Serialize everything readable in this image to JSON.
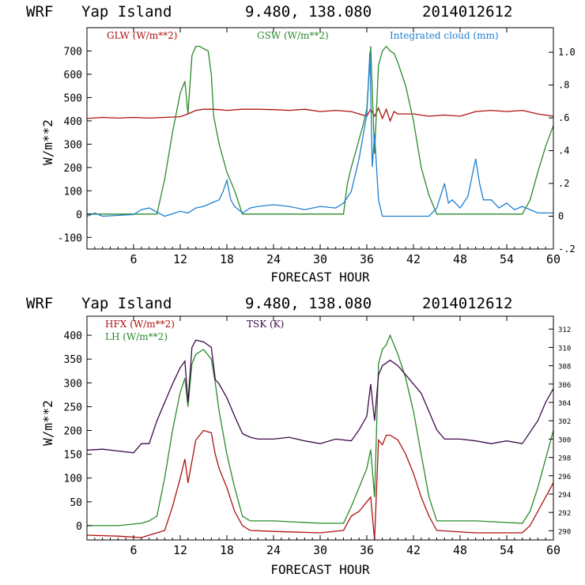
{
  "colors": {
    "glw": "#b01010",
    "gsw": "#2a8a2a",
    "cloud": "#1e7fd0",
    "hfx": "#b01010",
    "lh": "#2a8a2a",
    "tsk": "#3c0a4a",
    "axis": "#000000"
  },
  "chart_data": [
    {
      "type": "line",
      "header": {
        "model": "WRF",
        "location": "Yap Island",
        "coords": "9.480, 138.080",
        "run": "2014012612"
      },
      "xlabel": "FORECAST HOUR",
      "ylabel": "W/m**2",
      "xlim": [
        0,
        60
      ],
      "ylim": [
        -150,
        800
      ],
      "ylim_right": [
        -0.2,
        1.15
      ],
      "x_ticks": [
        6,
        12,
        18,
        24,
        30,
        36,
        42,
        48,
        54,
        60
      ],
      "x_tick_labels": [
        "6",
        "12",
        "18",
        "24",
        "30",
        "36",
        "42",
        "48",
        "54",
        "60"
      ],
      "y_ticks": [
        -100,
        0,
        100,
        200,
        300,
        400,
        500,
        600,
        700
      ],
      "y_tick_labels": [
        "-100",
        "0",
        "100",
        "200",
        "300",
        "400",
        "500",
        "600",
        "700"
      ],
      "y_ticks_right": [
        -0.2,
        0,
        0.2,
        0.4,
        0.6,
        0.8,
        1.0
      ],
      "y_tick_labels_right": [
        "-.2",
        "0",
        ".2",
        ".4",
        ".6",
        ".8",
        "1.0"
      ],
      "series": [
        {
          "name": "GLW (W/m**2)",
          "axis": "left",
          "color_key": "glw",
          "x": [
            0,
            2,
            4,
            6,
            8,
            10,
            12,
            13,
            14,
            15,
            16,
            17,
            18,
            20,
            22,
            24,
            26,
            28,
            30,
            32,
            34,
            35,
            36,
            36.5,
            37,
            37.5,
            38,
            38.5,
            39,
            39.5,
            40,
            42,
            44,
            46,
            48,
            50,
            52,
            54,
            56,
            58,
            60
          ],
          "y": [
            410,
            415,
            412,
            415,
            412,
            415,
            418,
            430,
            445,
            450,
            450,
            448,
            445,
            450,
            450,
            448,
            445,
            450,
            440,
            445,
            440,
            430,
            420,
            450,
            420,
            455,
            410,
            450,
            400,
            440,
            430,
            430,
            420,
            425,
            420,
            440,
            445,
            440,
            445,
            430,
            420
          ]
        },
        {
          "name": "GSW (W/m**2)",
          "axis": "left",
          "color_key": "gsw",
          "x": [
            0,
            6,
            9,
            10,
            11,
            12,
            12.6,
            13,
            13.5,
            14,
            14.5,
            15,
            15.6,
            16,
            16.3,
            17,
            18,
            19,
            20,
            24,
            30,
            33,
            33.5,
            34,
            34.5,
            35,
            35.5,
            36,
            36.5,
            37,
            37.5,
            38,
            38.5,
            39,
            39.5,
            40,
            41,
            42,
            43,
            44,
            45,
            50,
            56,
            57,
            58,
            59,
            60
          ],
          "y": [
            0,
            0,
            0,
            150,
            350,
            520,
            570,
            430,
            680,
            720,
            720,
            710,
            700,
            600,
            420,
            300,
            180,
            100,
            0,
            0,
            0,
            0,
            130,
            200,
            260,
            320,
            380,
            450,
            720,
            260,
            640,
            700,
            720,
            700,
            690,
            650,
            550,
            400,
            200,
            80,
            0,
            0,
            0,
            60,
            180,
            290,
            380
          ]
        },
        {
          "name": "Integrated cloud (mm)",
          "axis": "right",
          "color_key": "cloud",
          "x": [
            0,
            1,
            2,
            6,
            7,
            8,
            10,
            12,
            13,
            14,
            15,
            16,
            17,
            17.5,
            18,
            18.5,
            19,
            20,
            21,
            22,
            24,
            26,
            28,
            30,
            32,
            33,
            34,
            35,
            36,
            36.4,
            36.7,
            37,
            37.5,
            38,
            40,
            42,
            44,
            45,
            46,
            46.5,
            47,
            48,
            49,
            50,
            50.5,
            51,
            52,
            53,
            54,
            55,
            56,
            58,
            60
          ],
          "y": [
            0,
            0.02,
            0,
            0.01,
            0.04,
            0.05,
            0,
            0.03,
            0.02,
            0.05,
            0.06,
            0.08,
            0.1,
            0.15,
            0.22,
            0.1,
            0.06,
            0.02,
            0.05,
            0.06,
            0.07,
            0.06,
            0.04,
            0.06,
            0.05,
            0.08,
            0.15,
            0.35,
            0.62,
            1.0,
            0.3,
            0.5,
            0.1,
            0,
            0,
            0,
            0,
            0.05,
            0.2,
            0.08,
            0.1,
            0.05,
            0.12,
            0.35,
            0.2,
            0.1,
            0.1,
            0.05,
            0.08,
            0.04,
            0.06,
            0.02,
            0.02
          ]
        }
      ]
    },
    {
      "type": "line",
      "header": {
        "model": "WRF",
        "location": "Yap Island",
        "coords": "9.480, 138.080",
        "run": "2014012612"
      },
      "xlabel": "FORECAST HOUR",
      "ylabel": "W/m**2",
      "xlim": [
        0,
        60
      ],
      "ylim": [
        -30,
        440
      ],
      "ylim_right": [
        289,
        313.4
      ],
      "x_ticks": [
        6,
        12,
        18,
        24,
        30,
        36,
        42,
        48,
        54,
        60
      ],
      "x_tick_labels": [
        "6",
        "12",
        "18",
        "24",
        "30",
        "36",
        "42",
        "48",
        "54",
        "60"
      ],
      "y_ticks": [
        0,
        50,
        100,
        150,
        200,
        250,
        300,
        350,
        400
      ],
      "y_tick_labels": [
        "0",
        "50",
        "100",
        "150",
        "200",
        "250",
        "300",
        "350",
        "400"
      ],
      "y_ticks_right": [
        290,
        292,
        294,
        296,
        298,
        300,
        302,
        304,
        306,
        308,
        310,
        312
      ],
      "y_tick_labels_right": [
        "290",
        "292",
        "294",
        "296",
        "298",
        "300",
        "302",
        "304",
        "306",
        "308",
        "310",
        "312"
      ],
      "series": [
        {
          "name": "HFX (W/m**2)",
          "axis": "left",
          "color_key": "hfx",
          "x": [
            0,
            4,
            7,
            8,
            10,
            11,
            12,
            12.6,
            13,
            14,
            15,
            16,
            16.5,
            17,
            18,
            19,
            20,
            21,
            24,
            30,
            33,
            34,
            35,
            36,
            36.5,
            37,
            37.5,
            38,
            38.5,
            39,
            40,
            41,
            42,
            43,
            44,
            45,
            50,
            56,
            57,
            58,
            59,
            60
          ],
          "y": [
            -20,
            -22,
            -25,
            -20,
            -10,
            40,
            100,
            140,
            90,
            180,
            200,
            195,
            150,
            120,
            80,
            30,
            0,
            -10,
            -12,
            -15,
            -10,
            20,
            30,
            50,
            60,
            -30,
            180,
            170,
            190,
            190,
            180,
            150,
            110,
            60,
            20,
            -10,
            -15,
            -15,
            0,
            30,
            60,
            90
          ]
        },
        {
          "name": "LH (W/m**2)",
          "axis": "left",
          "color_key": "lh",
          "x": [
            0,
            4,
            7,
            8,
            9,
            10,
            11,
            12,
            12.6,
            13,
            13.5,
            14,
            15,
            16,
            16.5,
            17,
            18,
            19,
            20,
            21,
            24,
            30,
            33,
            34,
            35,
            36,
            36.5,
            37,
            37.5,
            38,
            38.5,
            39,
            40,
            41,
            42,
            43,
            44,
            45,
            50,
            56,
            57,
            58,
            59,
            60
          ],
          "y": [
            0,
            0,
            5,
            10,
            20,
            100,
            200,
            280,
            310,
            250,
            340,
            360,
            370,
            350,
            300,
            240,
            150,
            80,
            20,
            10,
            10,
            5,
            5,
            40,
            80,
            120,
            160,
            60,
            340,
            370,
            380,
            400,
            360,
            310,
            240,
            150,
            60,
            10,
            10,
            5,
            30,
            80,
            140,
            200
          ]
        },
        {
          "name": "TSK (K)",
          "axis": "right",
          "color_key": "tsk",
          "x": [
            0,
            2,
            4,
            6,
            7,
            8,
            9,
            10,
            11,
            12,
            12.6,
            13,
            13.5,
            14,
            15,
            16,
            16.5,
            17,
            18,
            19,
            20,
            21,
            22,
            24,
            26,
            28,
            30,
            32,
            34,
            35,
            36,
            36.5,
            37,
            37.5,
            38,
            39,
            40,
            41,
            42,
            43,
            44,
            45,
            46,
            48,
            50,
            52,
            54,
            56,
            58,
            59,
            60
          ],
          "y": [
            298.8,
            298.9,
            298.7,
            298.5,
            299.5,
            299.5,
            302.0,
            304.0,
            306.0,
            307.8,
            308.5,
            304.0,
            310.0,
            310.8,
            310.6,
            310.0,
            306.5,
            306.0,
            304.5,
            302.5,
            300.6,
            300.2,
            300.0,
            300.0,
            300.2,
            299.8,
            299.5,
            300.0,
            299.8,
            301.0,
            302.5,
            306.0,
            302.0,
            307.0,
            308.0,
            308.6,
            308.0,
            307.0,
            306.0,
            305.0,
            303.0,
            301.0,
            300.0,
            300.0,
            299.8,
            299.5,
            299.8,
            299.5,
            302.0,
            304.0,
            305.5
          ]
        }
      ]
    }
  ]
}
